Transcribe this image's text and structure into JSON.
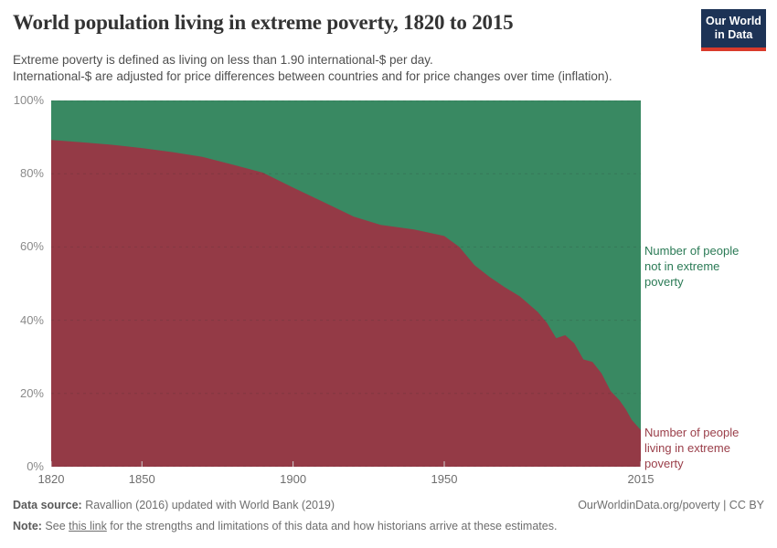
{
  "header": {
    "title": "World population living in extreme poverty, 1820 to 2015",
    "subtitle_line1": "Extreme poverty is defined as living on less than 1.90 international-$ per day.",
    "subtitle_line2": "International-$ are adjusted for price differences between countries and for price changes over time (inflation).",
    "logo": {
      "line1": "Our World",
      "line2": "in Data",
      "bg_color": "#1d3356",
      "stripe_color": "#d93a2b"
    }
  },
  "chart_data": {
    "type": "area",
    "stacked": true,
    "title": "World population living in extreme poverty, 1820 to 2015",
    "xlabel": "",
    "ylabel": "",
    "xlim": [
      1820,
      2015
    ],
    "ylim": [
      0,
      100
    ],
    "grid": "horizontal dashed",
    "x": [
      1820,
      1830,
      1840,
      1850,
      1860,
      1870,
      1880,
      1890,
      1900,
      1910,
      1920,
      1929,
      1940,
      1950,
      1955,
      1960,
      1965,
      1970,
      1975,
      1981,
      1984,
      1987,
      1990,
      1993,
      1996,
      1999,
      2002,
      2005,
      2008,
      2010,
      2012,
      2015
    ],
    "series": [
      {
        "name": "Number of people living in extreme poverty",
        "color": "#943a46",
        "values": [
          89.2,
          88.6,
          87.9,
          87,
          85.9,
          84.6,
          82.5,
          80.3,
          76.2,
          72.3,
          68.3,
          66,
          64.8,
          63,
          60,
          55,
          51.8,
          49,
          46.5,
          42.2,
          39.2,
          35.1,
          35.9,
          33.7,
          29.3,
          28.6,
          25.5,
          20.7,
          18.1,
          15.7,
          12.8,
          10
        ]
      },
      {
        "name": "Number of people not in extreme poverty",
        "color": "#398962",
        "values": [
          10.8,
          11.4,
          12.1,
          13,
          14.1,
          15.4,
          17.5,
          19.7,
          23.8,
          27.7,
          31.7,
          34,
          35.2,
          37,
          40,
          45,
          48.2,
          51,
          53.5,
          57.8,
          60.8,
          64.9,
          64.1,
          66.3,
          70.7,
          71.4,
          74.5,
          79.3,
          81.9,
          84.3,
          87.2,
          90
        ]
      }
    ],
    "x_ticks": [
      {
        "v": 1820,
        "label": "1820"
      },
      {
        "v": 1850,
        "label": "1850"
      },
      {
        "v": 1900,
        "label": "1900"
      },
      {
        "v": 1950,
        "label": "1950"
      },
      {
        "v": 2015,
        "label": "2015"
      }
    ],
    "y_ticks": [
      {
        "v": 0,
        "label": "0%"
      },
      {
        "v": 20,
        "label": "20%"
      },
      {
        "v": 40,
        "label": "40%"
      },
      {
        "v": 60,
        "label": "60%"
      },
      {
        "v": 80,
        "label": "80%"
      },
      {
        "v": 100,
        "label": "100%"
      }
    ],
    "legend_position": "inline labels right of plot"
  },
  "series_labels": {
    "not_poverty": "Number of people\nnot in extreme\npoverty",
    "poverty": "Number of people\nliving in extreme\npoverty"
  },
  "footer": {
    "source_label": "Data source:",
    "source_text": " Ravallion (2016) updated with World Bank (2019)",
    "credit": "OurWorldinData.org/poverty | CC BY",
    "note_label": "Note:",
    "note_pre": " See ",
    "note_link": "this link",
    "note_post": " for the strengths and limitations of this data and how historians arrive at these estimates."
  }
}
